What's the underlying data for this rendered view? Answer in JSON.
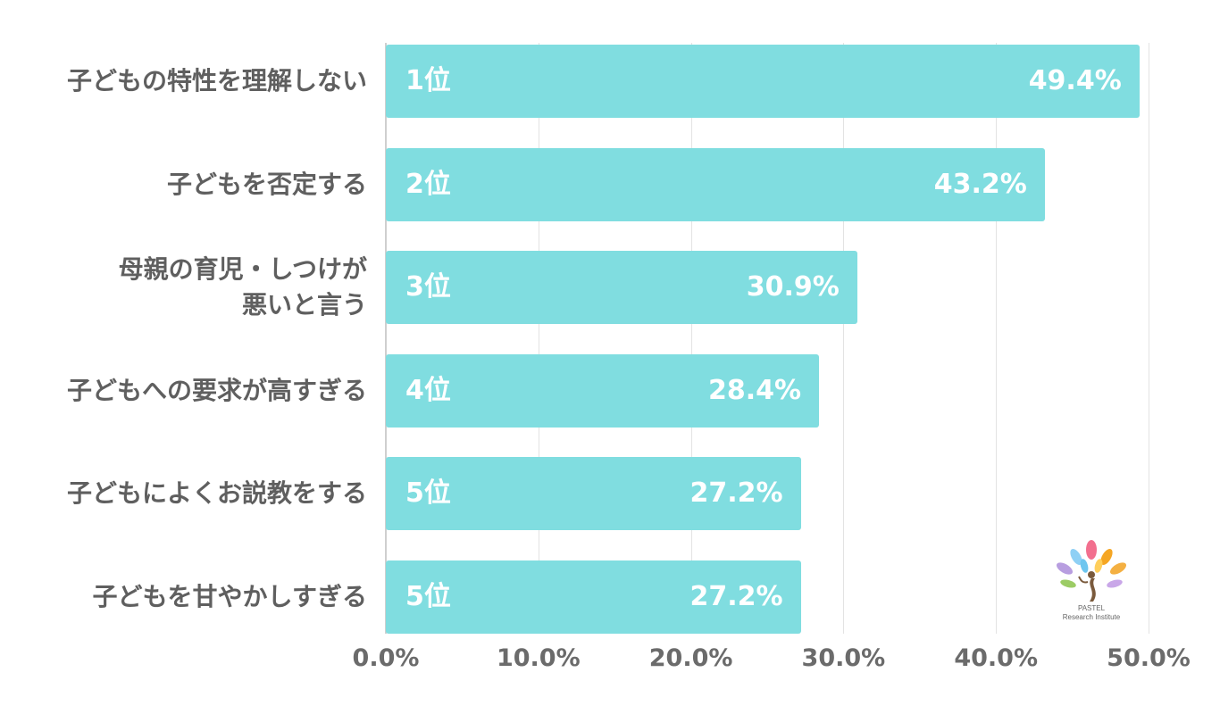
{
  "colors": {
    "bar": "#80dde0",
    "bar_text": "#ffffff",
    "category_text": "#5f5f5f",
    "tick_text": "#6b6b6b",
    "grid": "#e3e3e3"
  },
  "chart_data": {
    "type": "bar",
    "orientation": "horizontal",
    "categories": [
      "子どもの特性を理解しない",
      "子どもを否定する",
      "母親の育児・しつけが\n悪いと言う",
      "子どもへの要求が高すぎる",
      "子どもによくお説教をする",
      "子どもを甘やかしすぎる"
    ],
    "ranks": [
      "1位",
      "2位",
      "3位",
      "4位",
      "5位",
      "5位"
    ],
    "values": [
      49.4,
      43.2,
      30.9,
      28.4,
      27.2,
      27.2
    ],
    "value_labels": [
      "49.4%",
      "43.2%",
      "30.9%",
      "28.4%",
      "27.2%",
      "27.2%"
    ],
    "xlim": [
      0,
      50
    ],
    "x_ticks": [
      0,
      10,
      20,
      30,
      40,
      50
    ],
    "x_tick_labels": [
      "0.0%",
      "10.0%",
      "20.0%",
      "30.0%",
      "40.0%",
      "50.0%"
    ],
    "grid": true,
    "title": "",
    "xlabel": "",
    "ylabel": ""
  },
  "logo": {
    "line1": "PASTEL",
    "line2": "Research Institute"
  }
}
